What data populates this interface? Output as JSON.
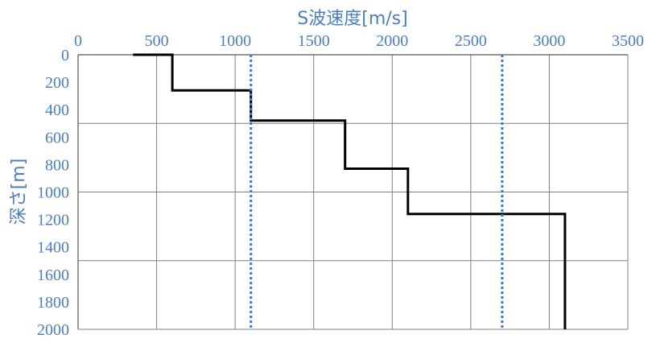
{
  "chart_data": {
    "type": "line",
    "title": "",
    "xlabel": "S波速度[m/s]",
    "ylabel": "深さ[m]",
    "xlim": [
      0,
      3500
    ],
    "ylim": [
      0,
      2000
    ],
    "y_inverted": true,
    "x_axis_position": "top",
    "xticks": [
      "0",
      "500",
      "1000",
      "1500",
      "2000",
      "2500",
      "3000",
      "3500"
    ],
    "yticks": [
      "0",
      "200",
      "400",
      "600",
      "800",
      "1000",
      "1200",
      "1400",
      "1600",
      "1800",
      "2000"
    ],
    "grid": {
      "vertical": [
        0,
        500,
        1000,
        1500,
        2000,
        2500,
        3000,
        3500
      ],
      "horizontal": [
        0,
        500,
        1000,
        1500,
        2000
      ]
    },
    "series": [
      {
        "style": "solid",
        "color": "#000000",
        "points": [
          [
            350,
            0
          ],
          [
            600,
            0
          ],
          [
            600,
            260
          ],
          [
            1100,
            260
          ],
          [
            1100,
            480
          ],
          [
            1700,
            480
          ],
          [
            1700,
            830
          ],
          [
            2100,
            830
          ],
          [
            2100,
            1160
          ],
          [
            3100,
            1160
          ],
          [
            3100,
            2000
          ]
        ]
      },
      {
        "style": "dotted",
        "color": "#3a78d4",
        "points": [
          [
            1100,
            0
          ],
          [
            1100,
            2000
          ]
        ]
      },
      {
        "style": "dotted",
        "color": "#3a78d4",
        "points": [
          [
            2700,
            0
          ],
          [
            2700,
            2000
          ]
        ]
      }
    ],
    "label_color": "#4a7fc1",
    "grid_color": "#808080"
  }
}
